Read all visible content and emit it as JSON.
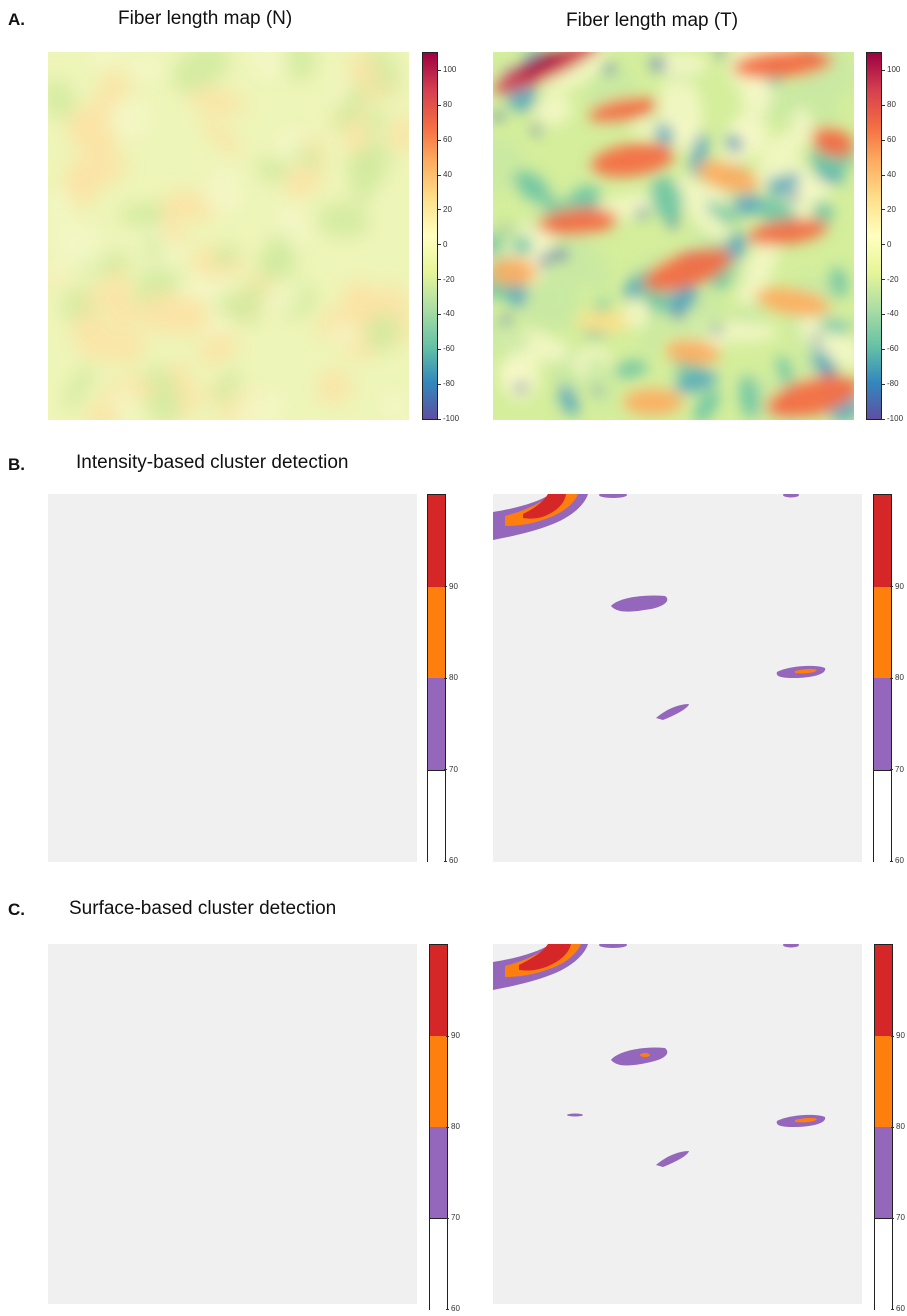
{
  "sections": {
    "a": {
      "label": "A."
    },
    "b": {
      "label": "B.",
      "title": "Intensity-based cluster detection"
    },
    "c": {
      "label": "C.",
      "title": "Surface-based cluster detection"
    }
  },
  "titles": {
    "map_n": "Fiber length map (N)",
    "map_t": "Fiber length map (T)"
  },
  "colors": {
    "spectral": [
      "#5e4fa2",
      "#3288bd",
      "#66c2a5",
      "#abdda4",
      "#e6f598",
      "#ffffbf",
      "#fee08b",
      "#fdae61",
      "#f46d43",
      "#d53e4f",
      "#9e0142"
    ],
    "cluster_bg": "#f0f0f0",
    "cluster_70_80": "#9467bd",
    "cluster_80_90": "#ff7f0e",
    "cluster_90_plus": "#d62728",
    "cluster_60_70": "#ffffff"
  },
  "chart_data": [
    {
      "type": "heatmap",
      "panel": "A-left",
      "title": "Fiber length map (N)",
      "colorbar_ticks": [
        "100",
        "80",
        "60",
        "40",
        "20",
        "0",
        "-20",
        "-40",
        "-60",
        "-80",
        "-100"
      ],
      "colorbar_range": [
        -100,
        110
      ],
      "value_range_estimate": [
        -30,
        30
      ]
    },
    {
      "type": "heatmap",
      "panel": "A-right",
      "title": "Fiber length map (T)",
      "colorbar_ticks": [
        "100",
        "80",
        "60",
        "40",
        "20",
        "0",
        "-20",
        "-40",
        "-60",
        "-80",
        "-100"
      ],
      "colorbar_range": [
        -100,
        110
      ],
      "value_range_estimate": [
        -100,
        110
      ]
    },
    {
      "type": "heatmap",
      "panel": "B-left",
      "colorbar_ticks": [
        "90",
        "80",
        "70",
        "60"
      ],
      "colorbar_range": [
        60,
        100
      ],
      "clusters": []
    },
    {
      "type": "heatmap",
      "panel": "B-right",
      "colorbar_ticks": [
        "90",
        "80",
        "70",
        "60"
      ],
      "colorbar_range": [
        60,
        100
      ],
      "clusters": [
        {
          "region": "top-left corner",
          "levels": [
            "70-80",
            "80-90",
            "90+"
          ]
        },
        {
          "region": "top edge center",
          "levels": [
            "70-80"
          ]
        },
        {
          "region": "top edge right",
          "levels": [
            "70-80"
          ]
        },
        {
          "region": "upper middle",
          "levels": [
            "70-80"
          ]
        },
        {
          "region": "middle right",
          "levels": [
            "70-80",
            "80-90"
          ]
        },
        {
          "region": "lower middle",
          "levels": [
            "70-80"
          ]
        }
      ]
    },
    {
      "type": "heatmap",
      "panel": "C-left",
      "colorbar_ticks": [
        "90",
        "80",
        "70",
        "60"
      ],
      "colorbar_range": [
        60,
        100
      ],
      "clusters": []
    },
    {
      "type": "heatmap",
      "panel": "C-right",
      "colorbar_ticks": [
        "90",
        "80",
        "70",
        "60"
      ],
      "colorbar_range": [
        60,
        100
      ],
      "clusters": [
        {
          "region": "top-left corner",
          "levels": [
            "70-80",
            "80-90",
            "90+"
          ]
        },
        {
          "region": "top edge center",
          "levels": [
            "70-80"
          ]
        },
        {
          "region": "top edge right",
          "levels": [
            "70-80"
          ]
        },
        {
          "region": "upper middle",
          "levels": [
            "70-80",
            "80-90"
          ]
        },
        {
          "region": "small left-middle",
          "levels": [
            "70-80"
          ]
        },
        {
          "region": "middle right",
          "levels": [
            "70-80",
            "80-90"
          ]
        },
        {
          "region": "lower middle",
          "levels": [
            "70-80"
          ]
        }
      ]
    }
  ]
}
